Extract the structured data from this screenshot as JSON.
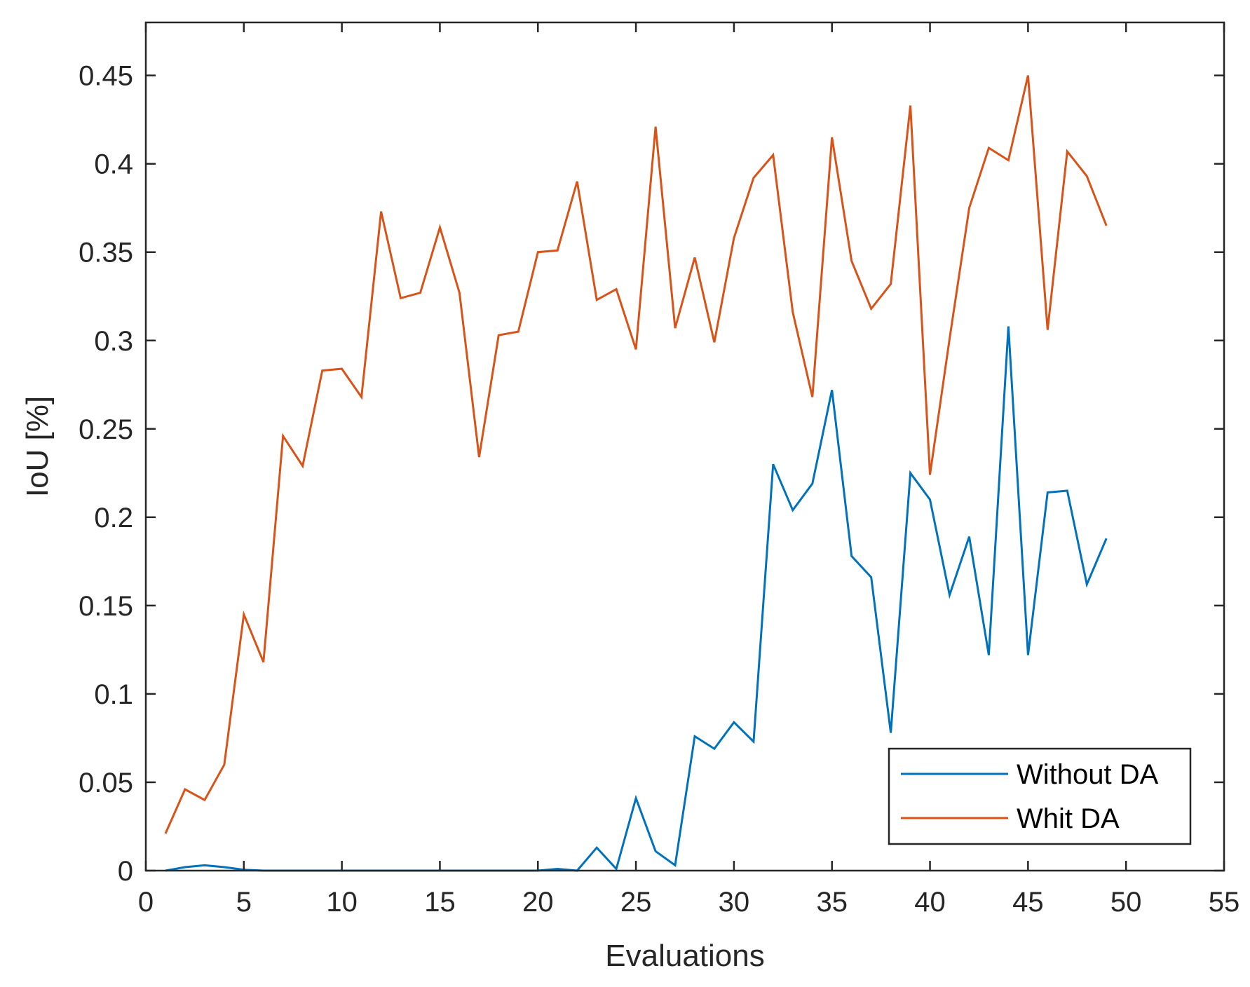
{
  "chart_data": {
    "type": "line",
    "xlabel": "Evaluations",
    "ylabel": "IoU [%]",
    "xlim": [
      0,
      55
    ],
    "ylim": [
      0,
      0.48
    ],
    "xticks": [
      0,
      5,
      10,
      15,
      20,
      25,
      30,
      35,
      40,
      45,
      50,
      55
    ],
    "yticks": [
      0,
      0.05,
      0.1,
      0.15,
      0.2,
      0.25,
      0.3,
      0.35,
      0.4,
      0.45
    ],
    "xtick_labels": [
      "0",
      "5",
      "10",
      "15",
      "20",
      "25",
      "30",
      "35",
      "40",
      "45",
      "50",
      "55"
    ],
    "ytick_labels": [
      "0",
      "0.05",
      "0.1",
      "0.15",
      "0.2",
      "0.25",
      "0.3",
      "0.35",
      "0.4",
      "0.45"
    ],
    "grid": false,
    "legend_position": "bottom-right",
    "x": [
      1,
      2,
      3,
      4,
      5,
      6,
      7,
      8,
      9,
      10,
      11,
      12,
      13,
      14,
      15,
      16,
      17,
      18,
      19,
      20,
      21,
      22,
      23,
      24,
      25,
      26,
      27,
      28,
      29,
      30,
      31,
      32,
      33,
      34,
      35,
      36,
      37,
      38,
      39,
      40,
      41,
      42,
      43,
      44,
      45,
      46,
      47,
      48,
      49
    ],
    "series": [
      {
        "name": "Without DA",
        "color": "#0072BD",
        "values": [
          0,
          0.002,
          0.003,
          0.002,
          0.0005,
          0,
          0,
          0,
          0,
          0,
          0,
          0,
          0,
          0,
          0,
          0,
          0,
          0,
          0,
          0,
          0.001,
          0,
          0.013,
          0.001,
          0.041,
          0.011,
          0.003,
          0.076,
          0.069,
          0.084,
          0.073,
          0.23,
          0.204,
          0.219,
          0.272,
          0.178,
          0.166,
          0.078,
          0.225,
          0.21,
          0.156,
          0.189,
          0.122,
          0.308,
          0.122,
          0.214,
          0.215,
          0.162,
          0.188
        ]
      },
      {
        "name": "Whit DA",
        "color": "#D95319",
        "values": [
          0.021,
          0.046,
          0.04,
          0.06,
          0.145,
          0.118,
          0.246,
          0.229,
          0.283,
          0.284,
          0.268,
          0.373,
          0.324,
          0.327,
          0.364,
          0.327,
          0.234,
          0.303,
          0.305,
          0.35,
          0.351,
          0.39,
          0.323,
          0.329,
          0.295,
          0.421,
          0.307,
          0.347,
          0.299,
          0.358,
          0.392,
          0.405,
          0.316,
          0.268,
          0.415,
          0.345,
          0.318,
          0.332,
          0.433,
          0.224,
          0.301,
          0.375,
          0.409,
          0.402,
          0.45,
          0.306,
          0.407,
          0.393,
          0.365
        ]
      }
    ]
  }
}
